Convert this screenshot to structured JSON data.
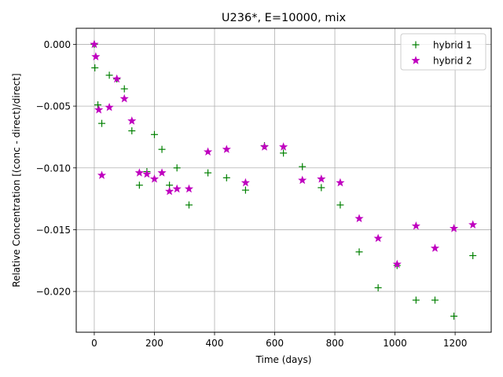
{
  "chart_data": {
    "type": "scatter",
    "title": "U236*, E=10000, mix",
    "xlabel": "Time (days)",
    "ylabel": "Relative Concentration [(conc - direct)/direct]",
    "xlim": [
      -60,
      1320
    ],
    "ylim": [
      -0.0233,
      0.0013
    ],
    "xticks": [
      0,
      200,
      400,
      600,
      800,
      1000,
      1200
    ],
    "xtick_labels": [
      "0",
      "200",
      "400",
      "600",
      "800",
      "1000",
      "1200"
    ],
    "yticks": [
      0.0,
      -0.005,
      -0.01,
      -0.015,
      -0.02
    ],
    "ytick_labels": [
      "0.000",
      "−0.005",
      "−0.010",
      "−0.015",
      "−0.020"
    ],
    "grid": true,
    "legend_position": "top-right",
    "series": [
      {
        "name": "hybrid 1",
        "marker": "plus",
        "color": "#008000",
        "points": [
          [
            0,
            0.0
          ],
          [
            2,
            -0.0019
          ],
          [
            12,
            -0.0049
          ],
          [
            25,
            -0.0064
          ],
          [
            50,
            -0.0025
          ],
          [
            75,
            -0.0028
          ],
          [
            100,
            -0.0036
          ],
          [
            125,
            -0.007
          ],
          [
            150,
            -0.0114
          ],
          [
            175,
            -0.0103
          ],
          [
            200,
            -0.0073
          ],
          [
            225,
            -0.0085
          ],
          [
            250,
            -0.0114
          ],
          [
            275,
            -0.01
          ],
          [
            315,
            -0.013
          ],
          [
            378,
            -0.0104
          ],
          [
            440,
            -0.0108
          ],
          [
            503,
            -0.0118
          ],
          [
            566,
            -0.0082
          ],
          [
            629,
            -0.0088
          ],
          [
            692,
            -0.0099
          ],
          [
            755,
            -0.0116
          ],
          [
            818,
            -0.013
          ],
          [
            881,
            -0.0168
          ],
          [
            944,
            -0.0197
          ],
          [
            1007,
            -0.0179
          ],
          [
            1070,
            -0.0207
          ],
          [
            1133,
            -0.0207
          ],
          [
            1196,
            -0.022
          ],
          [
            1259,
            -0.0171
          ]
        ]
      },
      {
        "name": "hybrid 2",
        "marker": "star",
        "color": "#bf00bf",
        "points": [
          [
            0,
            0.0
          ],
          [
            5,
            -0.001
          ],
          [
            15,
            -0.0053
          ],
          [
            25,
            -0.0106
          ],
          [
            50,
            -0.0051
          ],
          [
            75,
            -0.0028
          ],
          [
            100,
            -0.0044
          ],
          [
            125,
            -0.0062
          ],
          [
            150,
            -0.0104
          ],
          [
            175,
            -0.0105
          ],
          [
            200,
            -0.0109
          ],
          [
            225,
            -0.0104
          ],
          [
            250,
            -0.0119
          ],
          [
            275,
            -0.0117
          ],
          [
            315,
            -0.0117
          ],
          [
            378,
            -0.0087
          ],
          [
            440,
            -0.0085
          ],
          [
            503,
            -0.0112
          ],
          [
            566,
            -0.0083
          ],
          [
            629,
            -0.0083
          ],
          [
            692,
            -0.011
          ],
          [
            755,
            -0.0109
          ],
          [
            818,
            -0.0112
          ],
          [
            881,
            -0.0141
          ],
          [
            944,
            -0.0157
          ],
          [
            1007,
            -0.0178
          ],
          [
            1070,
            -0.0147
          ],
          [
            1133,
            -0.0165
          ],
          [
            1196,
            -0.0149
          ],
          [
            1259,
            -0.0146
          ]
        ]
      }
    ]
  }
}
